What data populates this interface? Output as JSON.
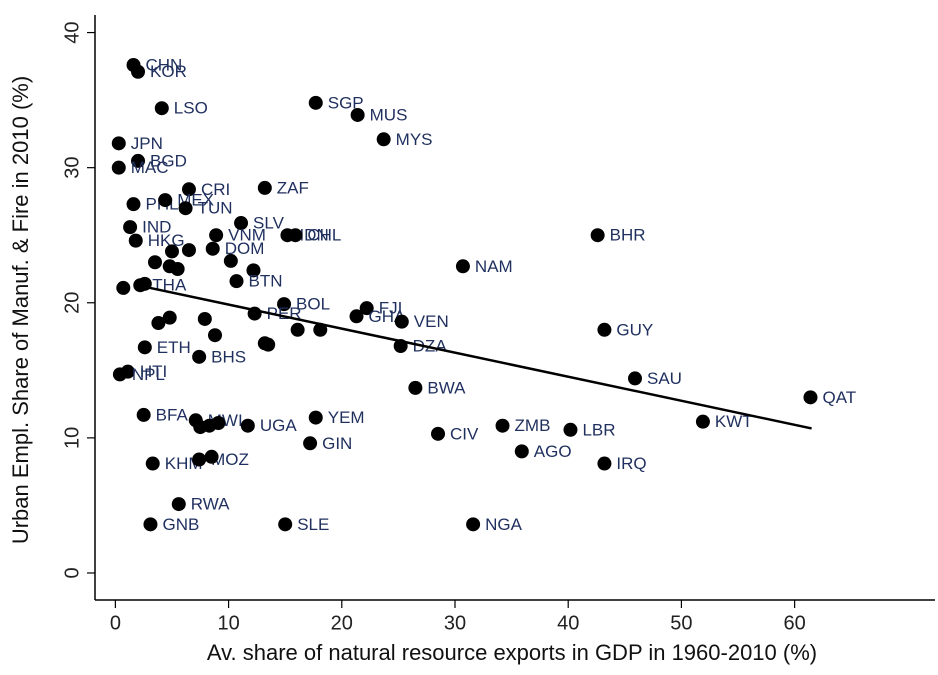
{
  "chart_data": {
    "type": "scatter",
    "xlabel": "Av. share of natural resource exports in GDP in 1960-2010 (%)",
    "ylabel": "Urban Empl. Share of Manuf. & Fire in 2010 (%)",
    "labels": [
      "CHN",
      "KOR",
      "LSO",
      "SGP",
      "MUS",
      "MYS",
      "JPN",
      "BGD",
      "MAC",
      "ZAF",
      "CRI",
      "PHL",
      "MEX",
      "TUN",
      "SLV",
      "IND",
      "HKG",
      "VNM",
      "IDN",
      "CHL",
      "BHR",
      "DOM",
      null,
      null,
      null,
      null,
      null,
      null,
      null,
      "BTN",
      "THA",
      null,
      null,
      "NAM",
      "BOL",
      "FJI",
      "GHA",
      "VEN",
      "PER",
      "GUY",
      null,
      null,
      null,
      null,
      null,
      null,
      "ETH",
      "BHS",
      "DZA",
      null,
      null,
      "HTI",
      "NPL",
      "SAU",
      "BWA",
      "QAT",
      "KWT",
      "YEM",
      "BFA",
      "MWI",
      null,
      null,
      null,
      "UGA",
      "ZMB",
      "LBR",
      "CIV",
      "GIN",
      "AGO",
      "IRQ",
      "KHM",
      "MOZ",
      null,
      "RWA",
      "GNB",
      "SLE",
      "NGA"
    ],
    "x": [
      1.6,
      2.0,
      4.1,
      17.7,
      21.4,
      23.7,
      0.3,
      2.0,
      0.3,
      13.2,
      6.5,
      1.6,
      4.4,
      6.2,
      11.1,
      1.3,
      1.8,
      8.9,
      15.2,
      15.9,
      42.6,
      8.6,
      5.0,
      6.5,
      10.2,
      3.5,
      4.8,
      5.5,
      12.2,
      10.7,
      2.2,
      0.7,
      2.6,
      30.7,
      14.9,
      22.2,
      21.3,
      25.3,
      12.3,
      43.2,
      3.8,
      4.8,
      7.9,
      8.8,
      16.1,
      18.1,
      2.6,
      7.4,
      25.2,
      13.2,
      13.5,
      1.1,
      0.4,
      45.9,
      26.5,
      61.4,
      51.9,
      17.7,
      2.5,
      7.1,
      7.5,
      8.3,
      9.1,
      11.7,
      34.2,
      40.2,
      28.5,
      17.2,
      35.9,
      43.2,
      3.3,
      7.4,
      8.5,
      5.6,
      3.1,
      15.0,
      31.6
    ],
    "y": [
      37.6,
      37.1,
      34.4,
      34.8,
      33.9,
      32.1,
      31.8,
      30.5,
      30.0,
      28.5,
      28.4,
      27.3,
      27.6,
      27.0,
      25.9,
      25.6,
      24.6,
      25.0,
      25.0,
      25.0,
      25.0,
      24.0,
      23.8,
      23.9,
      23.1,
      23.0,
      22.7,
      22.5,
      22.4,
      21.6,
      21.3,
      21.1,
      21.4,
      22.7,
      19.9,
      19.6,
      19.0,
      18.6,
      19.2,
      18.0,
      18.5,
      18.9,
      18.8,
      17.6,
      18.0,
      18.0,
      16.7,
      16.0,
      16.8,
      17.0,
      16.9,
      14.9,
      14.7,
      14.4,
      13.7,
      13.0,
      11.2,
      11.5,
      11.7,
      11.3,
      10.8,
      10.9,
      11.1,
      10.9,
      10.9,
      10.6,
      10.3,
      9.6,
      9.0,
      8.1,
      8.1,
      8.4,
      8.6,
      5.1,
      3.6,
      3.6,
      3.6
    ],
    "fit": {
      "x": [
        2.5,
        61.5
      ],
      "y": [
        21.2,
        10.7
      ]
    },
    "xlim": [
      -1.8,
      72.4
    ],
    "ylim": [
      -2.0,
      41.3
    ],
    "xticks": [
      0,
      10,
      20,
      30,
      40,
      50,
      60
    ],
    "yticks": [
      0,
      10,
      20,
      30,
      40
    ],
    "marker_color": "#000000",
    "label_color": "#1f2f5e",
    "grid": false
  }
}
